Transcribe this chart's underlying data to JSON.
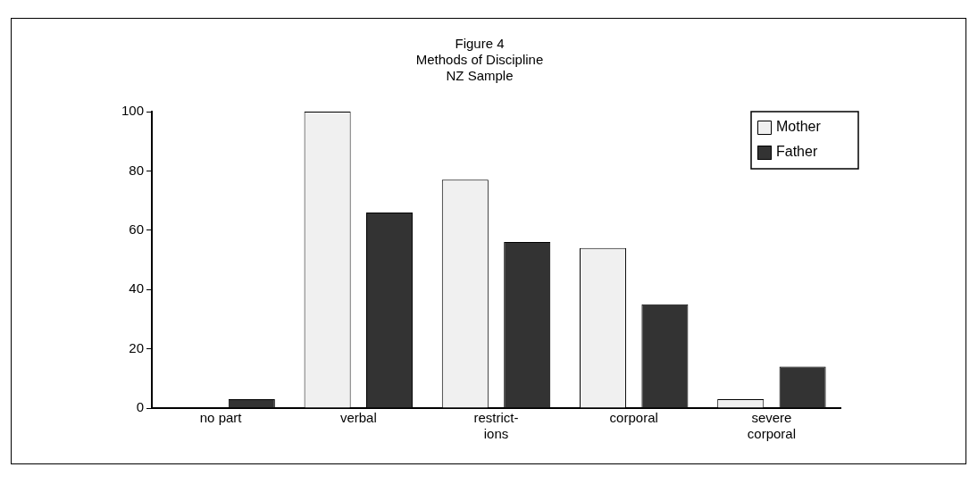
{
  "chart_data": {
    "type": "bar",
    "title": [
      "Figure 4",
      "Methods of Discipline",
      "NZ Sample"
    ],
    "categories": [
      "no part",
      "verbal",
      "restrict-\nions",
      "corporal",
      "severe\ncorporal"
    ],
    "series": [
      {
        "name": "Mother",
        "color": "#f0f0f0",
        "values": [
          0,
          100,
          77,
          54,
          3
        ]
      },
      {
        "name": "Father",
        "color": "#333333",
        "values": [
          3,
          66,
          56,
          35,
          14
        ]
      }
    ],
    "ylim": [
      0,
      100
    ],
    "yticks": [
      0,
      20,
      40,
      60,
      80,
      100
    ],
    "grid": false,
    "legend": "top right"
  }
}
